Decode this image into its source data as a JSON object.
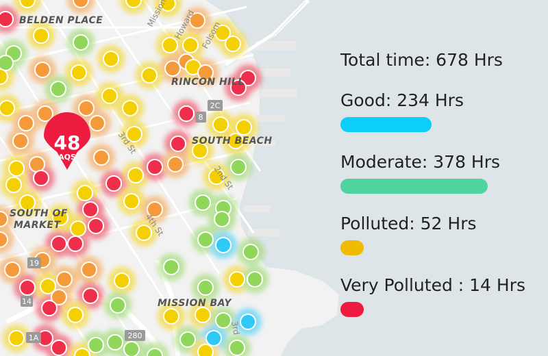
{
  "map": {
    "neighborhoods": {
      "belden_place": "BELDEN PLACE",
      "rincon_hill": "RINCON HILL",
      "south_beach": "SOUTH BEACH",
      "south_of_market_1": "SOUTH OF",
      "south_of_market_2": "MARKET",
      "mission_bay": "MISSION BAY"
    },
    "streets": {
      "mission_st": "Mission",
      "howard_st": "Howard",
      "folsom_st": "Folsom",
      "third_st": "3rd St",
      "second_st": "2nd St",
      "fourth_st": "4th St",
      "third_st_lower": "3rd"
    },
    "shields": {
      "s2c": "2C",
      "s8": "8",
      "s280": "280",
      "s19": "19",
      "s1a": "1A",
      "s14": "14"
    },
    "marker": {
      "value": "48",
      "unit": "AQS"
    },
    "colors": {
      "good": "#2ec9f4",
      "moderate": "#8fd65a",
      "polluted_light": "#f5d000",
      "polluted_orange": "#f59a3a",
      "very_polluted": "#ee2e4a"
    }
  },
  "stats": {
    "total_label": "Total time: 678 Hrs",
    "good": {
      "label": "Good: 234 Hrs",
      "hours": 234,
      "color": "#0dcdf9"
    },
    "moderate": {
      "label": "Moderate: 378 Hrs",
      "hours": 378,
      "color": "#4fd4a0"
    },
    "polluted": {
      "label": "Polluted: 52 Hrs",
      "hours": 52,
      "color": "#f0bb00"
    },
    "very_polluted": {
      "label": "Very Polluted : 14 Hrs",
      "hours": 14,
      "color": "#ee1b40"
    }
  }
}
